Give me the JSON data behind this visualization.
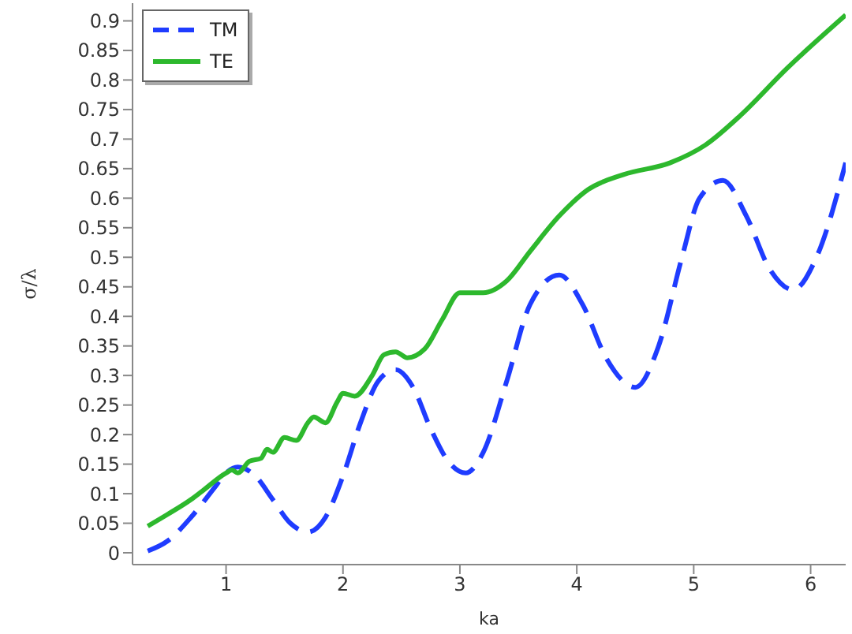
{
  "chart_data": {
    "type": "line",
    "xlabel": "ka",
    "ylabel": "σ/λ",
    "xlim": [
      0.2,
      6.3
    ],
    "ylim": [
      -0.02,
      0.93
    ],
    "xticks": [
      1,
      2,
      3,
      4,
      5,
      6
    ],
    "yticks": [
      0,
      0.05,
      0.1,
      0.15,
      0.2,
      0.25,
      0.3,
      0.35,
      0.4,
      0.45,
      0.5,
      0.55,
      0.6,
      0.65,
      0.7,
      0.75,
      0.8,
      0.85,
      0.9
    ],
    "grid": false,
    "legend": "top left",
    "marker": "none",
    "series": [
      {
        "name": "TM",
        "color": "#1f3cff",
        "line_style": "dashed",
        "x": [
          0.33,
          0.5,
          0.7,
          0.9,
          1.0,
          1.1,
          1.25,
          1.4,
          1.55,
          1.7,
          1.85,
          2.0,
          2.15,
          2.3,
          2.45,
          2.6,
          2.75,
          2.9,
          3.05,
          3.2,
          3.4,
          3.6,
          3.85,
          4.05,
          4.25,
          4.5,
          4.7,
          4.9,
          5.05,
          5.25,
          5.45,
          5.65,
          5.85,
          6.05,
          6.3
        ],
        "values": [
          0.003,
          0.02,
          0.06,
          0.11,
          0.135,
          0.145,
          0.13,
          0.09,
          0.05,
          0.035,
          0.06,
          0.13,
          0.22,
          0.29,
          0.31,
          0.28,
          0.21,
          0.155,
          0.135,
          0.17,
          0.29,
          0.42,
          0.47,
          0.42,
          0.33,
          0.28,
          0.35,
          0.5,
          0.6,
          0.63,
          0.57,
          0.48,
          0.445,
          0.5,
          0.66
        ]
      },
      {
        "name": "TE",
        "color": "#2db82d",
        "line_style": "solid",
        "x": [
          0.33,
          0.5,
          0.7,
          0.8,
          1.0,
          1.05,
          1.1,
          1.2,
          1.3,
          1.35,
          1.4,
          1.5,
          1.6,
          1.7,
          1.75,
          1.85,
          1.95,
          2.0,
          2.1,
          2.25,
          2.35,
          2.45,
          2.55,
          2.7,
          2.85,
          3.0,
          3.2,
          3.4,
          3.6,
          3.85,
          4.1,
          4.4,
          4.8,
          5.1,
          5.4,
          5.8,
          6.3
        ],
        "values": [
          0.045,
          0.065,
          0.09,
          0.105,
          0.135,
          0.14,
          0.135,
          0.155,
          0.16,
          0.175,
          0.17,
          0.195,
          0.19,
          0.22,
          0.23,
          0.22,
          0.255,
          0.27,
          0.265,
          0.3,
          0.335,
          0.34,
          0.33,
          0.345,
          0.395,
          0.44,
          0.44,
          0.46,
          0.51,
          0.57,
          0.615,
          0.64,
          0.66,
          0.69,
          0.74,
          0.82,
          0.91
        ]
      }
    ]
  }
}
